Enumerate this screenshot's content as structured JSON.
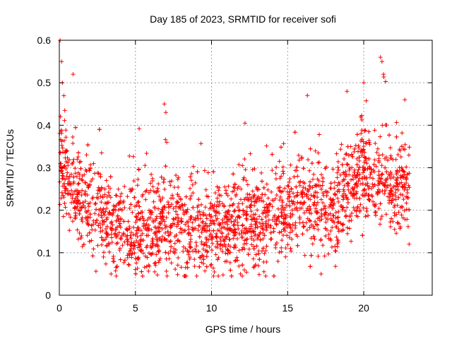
{
  "chart_data": {
    "type": "scatter",
    "title": "Day 185 of 2023, SRMTID for receiver sofi",
    "xlabel": "GPS time / hours",
    "ylabel": "SRMTID / TECUs",
    "xlim": [
      0,
      24.5
    ],
    "ylim": [
      0,
      0.6
    ],
    "x_ticks": [
      0,
      5,
      10,
      15,
      20
    ],
    "x_tick_labels": [
      "0",
      "5",
      "10",
      "15",
      "20"
    ],
    "y_ticks": [
      0,
      0.1,
      0.2,
      0.3,
      0.4,
      0.5,
      0.6
    ],
    "y_tick_labels": [
      "0",
      "0.1",
      "0.2",
      "0.3",
      "0.4",
      "0.5",
      "0.6"
    ],
    "grid": true,
    "marker": "+",
    "series": [
      {
        "name": "SRMTID",
        "color": "#ff0000",
        "x_range": [
          0,
          23
        ],
        "trend": [
          {
            "x": 0.0,
            "y": 0.33
          },
          {
            "x": 0.3,
            "y": 0.3
          },
          {
            "x": 1.0,
            "y": 0.24
          },
          {
            "x": 2.0,
            "y": 0.21
          },
          {
            "x": 3.0,
            "y": 0.18
          },
          {
            "x": 4.0,
            "y": 0.16
          },
          {
            "x": 5.0,
            "y": 0.155
          },
          {
            "x": 6.0,
            "y": 0.16
          },
          {
            "x": 7.0,
            "y": 0.17
          },
          {
            "x": 8.0,
            "y": 0.155
          },
          {
            "x": 9.0,
            "y": 0.15
          },
          {
            "x": 10.0,
            "y": 0.16
          },
          {
            "x": 11.0,
            "y": 0.155
          },
          {
            "x": 12.0,
            "y": 0.17
          },
          {
            "x": 13.0,
            "y": 0.18
          },
          {
            "x": 14.0,
            "y": 0.195
          },
          {
            "x": 15.0,
            "y": 0.21
          },
          {
            "x": 16.0,
            "y": 0.215
          },
          {
            "x": 17.0,
            "y": 0.21
          },
          {
            "x": 18.0,
            "y": 0.205
          },
          {
            "x": 19.0,
            "y": 0.24
          },
          {
            "x": 20.0,
            "y": 0.29
          },
          {
            "x": 21.0,
            "y": 0.28
          },
          {
            "x": 22.0,
            "y": 0.25
          },
          {
            "x": 23.0,
            "y": 0.26
          }
        ],
        "spread": 0.055,
        "spikes": [
          {
            "x": 0.05,
            "y": 0.6
          },
          {
            "x": 0.15,
            "y": 0.55
          },
          {
            "x": 0.2,
            "y": 0.5
          },
          {
            "x": 0.9,
            "y": 0.52
          },
          {
            "x": 6.9,
            "y": 0.45
          },
          {
            "x": 7.0,
            "y": 0.43
          },
          {
            "x": 12.2,
            "y": 0.405
          },
          {
            "x": 16.3,
            "y": 0.47
          },
          {
            "x": 18.9,
            "y": 0.48
          },
          {
            "x": 20.0,
            "y": 0.5
          },
          {
            "x": 21.1,
            "y": 0.56
          },
          {
            "x": 21.2,
            "y": 0.55
          },
          {
            "x": 21.3,
            "y": 0.52
          },
          {
            "x": 22.7,
            "y": 0.46
          },
          {
            "x": 11.9,
            "y": 0.05
          },
          {
            "x": 17.2,
            "y": 0.05
          },
          {
            "x": 3.4,
            "y": 0.05
          }
        ],
        "point_count": 2600
      }
    ]
  }
}
